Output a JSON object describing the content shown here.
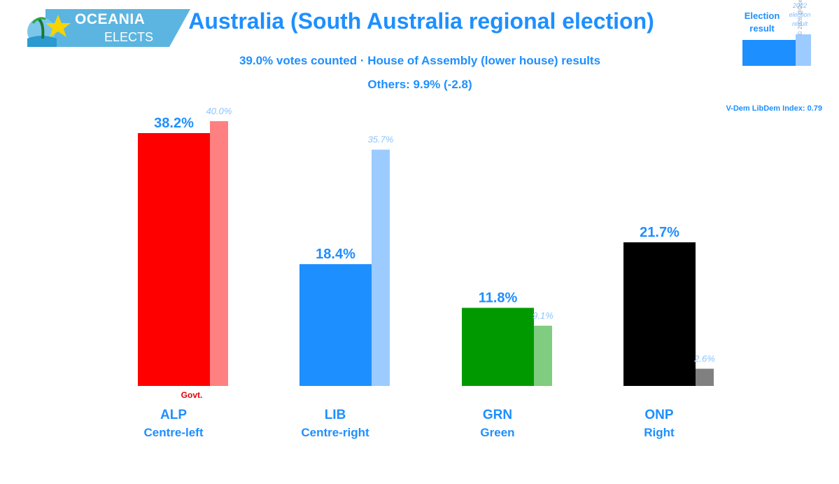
{
  "logo": {
    "line1": "OCEANIA",
    "line2": "ELECTS"
  },
  "header": {
    "title": "Australia (South Australia regional election)",
    "subtitle": "39.0% votes counted · House of Assembly (lower house) results",
    "others": "Others: 9.9% (-2.8)"
  },
  "legend": {
    "current_label_1": "Election",
    "current_label_2": "result",
    "previous_label_1": "2022",
    "previous_label_2": "election",
    "previous_label_3": "result",
    "copyright": "© 2026 @OceaniaElects",
    "current_color": "#1e8fff",
    "previous_color": "#9ccbff"
  },
  "vdem": "V-Dem LibDem Index: 0.79",
  "chart_data": {
    "type": "bar",
    "categories": [
      "ALP",
      "LIB",
      "GRN",
      "ONP"
    ],
    "ideologies": [
      "Centre-left",
      "Centre-right",
      "Green",
      "Right"
    ],
    "series": [
      {
        "values": [
          38.2,
          18.4,
          11.8,
          21.7
        ],
        "labels": [
          "38.2%",
          "18.4%",
          "11.8%",
          "21.7%"
        ]
      },
      {
        "values": [
          40.0,
          35.7,
          9.1,
          2.6
        ],
        "labels": [
          "40.0%",
          "35.7%",
          "9.1%",
          "2.6%"
        ]
      }
    ],
    "current_colors": [
      "#ff0000",
      "#1e8fff",
      "#009a00",
      "#000000"
    ],
    "previous_colors": [
      "#ff8080",
      "#9ccbff",
      "#80cc80",
      "#808080"
    ],
    "government_marker": {
      "party": "ALP",
      "label": "Govt."
    },
    "ylim": [
      0,
      40
    ]
  }
}
